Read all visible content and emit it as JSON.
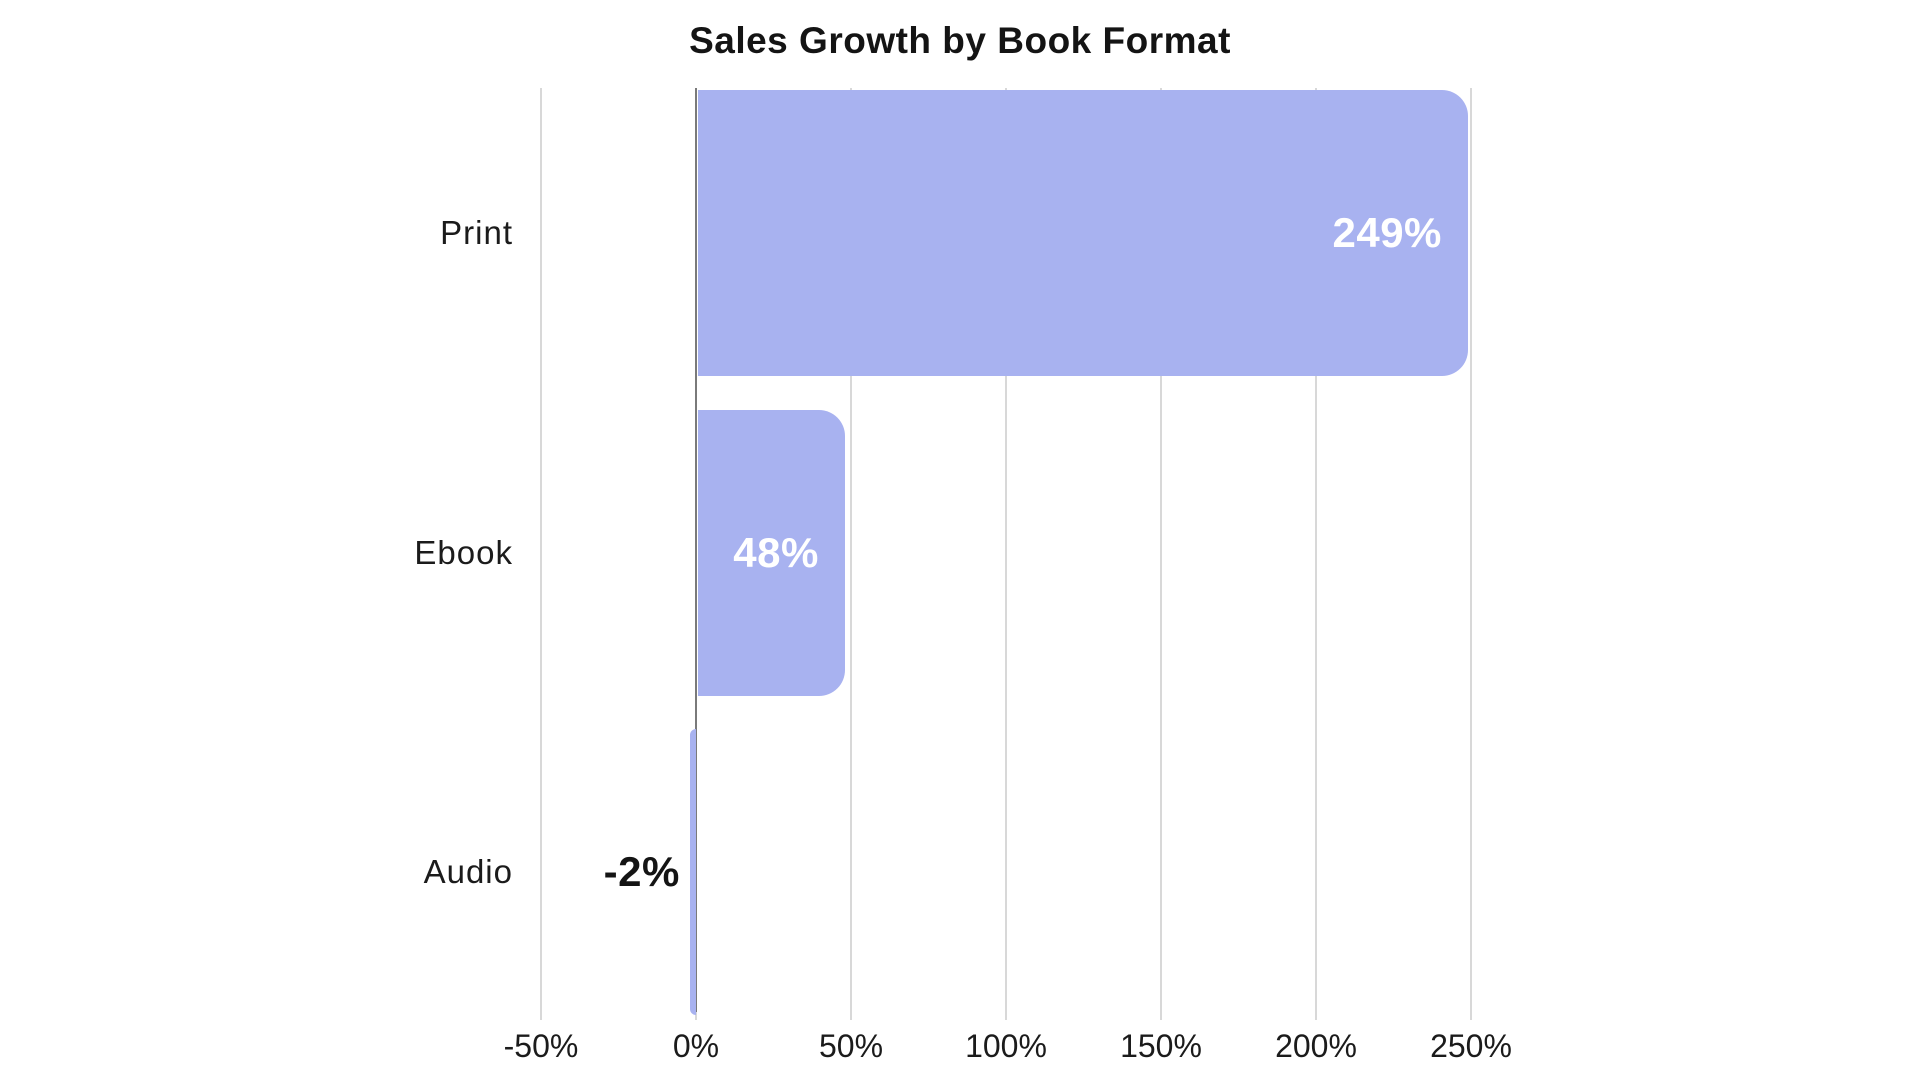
{
  "title": "Sales Growth by Book Format",
  "colors": {
    "background": "#ffffff",
    "bar": "#a8b2f0",
    "grid": "#d8d8d8",
    "zero_axis": "#7a7a7a",
    "title_text": "#141414",
    "label_text": "#1b1b1b",
    "value_label_inside": "#ffffff",
    "value_label_outside": "#141414"
  },
  "chart_data": {
    "type": "bar",
    "orientation": "horizontal",
    "title": "Sales Growth by Book Format",
    "categories": [
      "Print",
      "Ebook",
      "Audio"
    ],
    "values": [
      249,
      48,
      -2
    ],
    "value_labels": [
      "249%",
      "48%",
      "-2%"
    ],
    "xlabel": "",
    "ylabel": "",
    "xlim": [
      -50,
      250
    ],
    "xticks": [
      {
        "value": -50,
        "label": "-50%"
      },
      {
        "value": 0,
        "label": "0%"
      },
      {
        "value": 50,
        "label": "50%"
      },
      {
        "value": 100,
        "label": "100%"
      },
      {
        "value": 150,
        "label": "150%"
      },
      {
        "value": 200,
        "label": "200%"
      },
      {
        "value": 250,
        "label": "250%"
      }
    ],
    "grid": "vertical",
    "legend": "none"
  }
}
